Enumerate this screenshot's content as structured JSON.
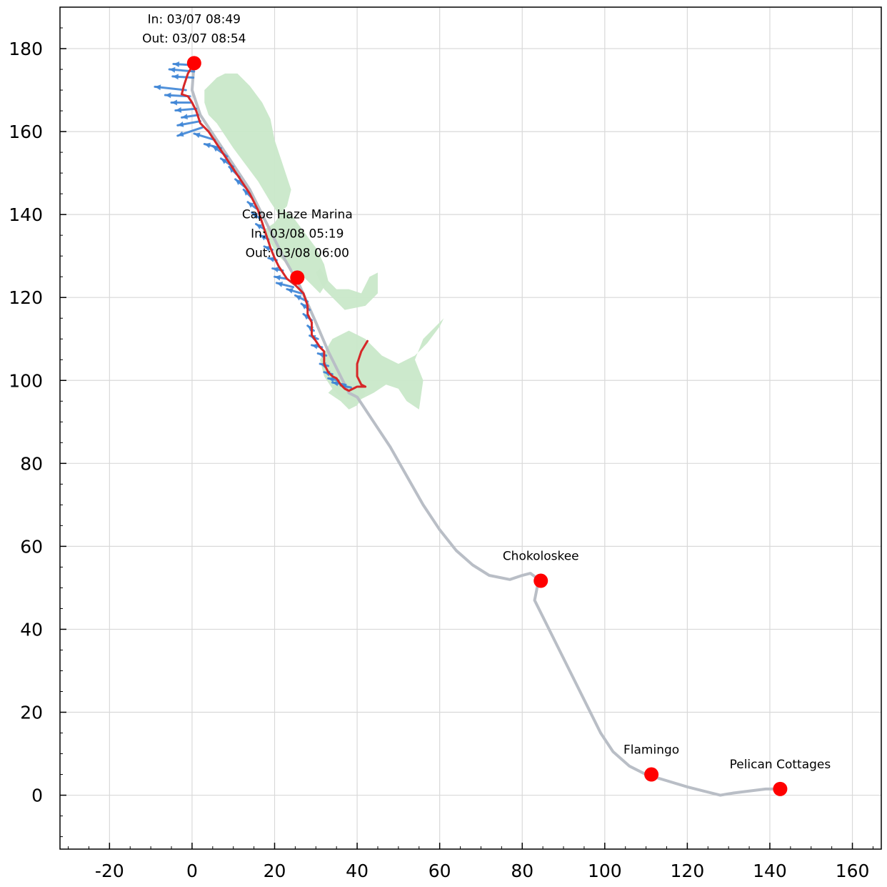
{
  "chart_data": {
    "type": "line",
    "title": "",
    "xlabel": "",
    "ylabel": "",
    "xlim": [
      -32,
      167
    ],
    "ylim": [
      -13,
      190
    ],
    "grid": true,
    "x_ticks": [
      -20,
      0,
      20,
      40,
      60,
      80,
      100,
      120,
      140,
      160
    ],
    "x_tick_labels": [
      "-20",
      "0",
      "20",
      "40",
      "60",
      "80",
      "100",
      "120",
      "140",
      "160"
    ],
    "y_ticks": [
      0,
      20,
      40,
      60,
      80,
      100,
      120,
      140,
      160,
      180
    ],
    "y_tick_labels": [
      "0",
      "20",
      "40",
      "60",
      "80",
      "100",
      "120",
      "140",
      "160",
      "180"
    ],
    "colors": {
      "planned_route": "#b9bec6",
      "actual_track": "#d62728",
      "wind_arrows": "#3f86d6",
      "stops": "#ff0000",
      "land": "#c9e8c9",
      "grid": "#d9d9d9"
    },
    "series": [
      {
        "key": "planned_route",
        "x": [
          0.5,
          0,
          2,
          6,
          10,
          14,
          18,
          22,
          26,
          30,
          33,
          36,
          38,
          40,
          44,
          48,
          52,
          56,
          60,
          64,
          68,
          72,
          77,
          80,
          82,
          84,
          83,
          85,
          88,
          92,
          96,
          99,
          102,
          106,
          110,
          115,
          120,
          124,
          128,
          131,
          135,
          139,
          142.5
        ],
        "y": [
          176.5,
          170,
          164,
          158,
          152,
          146,
          138,
          130,
          123,
          114,
          107,
          101,
          97,
          96,
          90,
          84,
          77,
          70,
          64,
          59,
          55.5,
          53,
          52,
          53,
          53.5,
          52,
          47,
          43,
          37,
          29,
          21,
          15,
          10.5,
          7,
          5,
          3.5,
          2,
          1,
          0,
          0.5,
          1,
          1.5,
          1.5
        ]
      },
      {
        "key": "actual_track",
        "x": [
          0.5,
          -1,
          -2,
          -2.5,
          -1,
          0,
          1,
          2,
          4,
          6,
          8,
          10,
          12,
          14,
          16,
          17,
          18,
          19,
          20,
          21,
          22,
          23,
          25,
          27,
          28,
          28,
          29,
          29,
          30,
          31,
          32,
          32,
          33,
          34,
          35,
          36,
          37,
          38,
          39,
          40,
          42,
          41,
          40,
          40,
          41,
          42.5
        ],
        "y": [
          176.5,
          174,
          171,
          169,
          168.5,
          167,
          165,
          162,
          160,
          157,
          154,
          151,
          148,
          145,
          141,
          138,
          135,
          132,
          129.5,
          127.5,
          126,
          124.5,
          123,
          121,
          118,
          116,
          114,
          111,
          109.5,
          108,
          107,
          104,
          102,
          101,
          100.5,
          99,
          98,
          97.5,
          98,
          98.5,
          98.5,
          99,
          101,
          104,
          107,
          109.5
        ]
      },
      {
        "key": "wind_barbs",
        "points": [
          {
            "x": 0.5,
            "y": 176.0,
            "u": -5,
            "v": 0.3
          },
          {
            "x": 0.5,
            "y": 174.5,
            "u": -6,
            "v": 0.5
          },
          {
            "x": 0.3,
            "y": 173.0,
            "u": -5,
            "v": 0.3
          },
          {
            "x": -1.5,
            "y": 170.0,
            "u": -7.5,
            "v": 0.8
          },
          {
            "x": -0.5,
            "y": 168.5,
            "u": -6,
            "v": 0.3
          },
          {
            "x": 0.0,
            "y": 167.0,
            "u": -5,
            "v": 0.0
          },
          {
            "x": 1.0,
            "y": 165.5,
            "u": -5,
            "v": -0.4
          },
          {
            "x": 1.5,
            "y": 164.0,
            "u": -4,
            "v": -0.6
          },
          {
            "x": 2.0,
            "y": 162.5,
            "u": -5.5,
            "v": -1.0
          },
          {
            "x": 2.5,
            "y": 161.0,
            "u": -6,
            "v": -2.0
          },
          {
            "x": 5.5,
            "y": 158.0,
            "u": -5,
            "v": 1.5
          },
          {
            "x": 7.0,
            "y": 156.0,
            "u": -4,
            "v": 1.0
          },
          {
            "x": 8.5,
            "y": 154.0,
            "u": -3.5,
            "v": 2.5
          },
          {
            "x": 10.0,
            "y": 151.5,
            "u": -3,
            "v": 2.0
          },
          {
            "x": 11.5,
            "y": 149.0,
            "u": -2.5,
            "v": 2.5
          },
          {
            "x": 13.0,
            "y": 146.5,
            "u": -2.5,
            "v": 2.0
          },
          {
            "x": 14.5,
            "y": 144.0,
            "u": -2,
            "v": 2.0
          },
          {
            "x": 15.5,
            "y": 141.5,
            "u": -2,
            "v": 1.5
          },
          {
            "x": 16.5,
            "y": 139.0,
            "u": -2,
            "v": 1.5
          },
          {
            "x": 17.5,
            "y": 136.5,
            "u": -2,
            "v": 1.2
          },
          {
            "x": 18.5,
            "y": 134.0,
            "u": -2,
            "v": 1.0
          },
          {
            "x": 19.5,
            "y": 131.5,
            "u": -2,
            "v": 0.8
          },
          {
            "x": 20.5,
            "y": 129.0,
            "u": -2,
            "v": 0.5
          },
          {
            "x": 22.0,
            "y": 126.5,
            "u": -2.5,
            "v": 0.5
          },
          {
            "x": 23.0,
            "y": 124.5,
            "u": -3,
            "v": 0.5
          },
          {
            "x": 24.5,
            "y": 122.5,
            "u": -4,
            "v": 1.0
          },
          {
            "x": 26.5,
            "y": 121.0,
            "u": -3.5,
            "v": 1.0
          },
          {
            "x": 28.0,
            "y": 119.0,
            "u": -3,
            "v": 1.5
          },
          {
            "x": 28.5,
            "y": 117.0,
            "u": -2,
            "v": 1.5
          },
          {
            "x": 29.0,
            "y": 114.5,
            "u": -2,
            "v": 1.5
          },
          {
            "x": 29.5,
            "y": 112.0,
            "u": -1.5,
            "v": 1.2
          },
          {
            "x": 30.5,
            "y": 110.0,
            "u": -2,
            "v": 0.8
          },
          {
            "x": 31.5,
            "y": 108.0,
            "u": -2.5,
            "v": 0.5
          },
          {
            "x": 32.5,
            "y": 106.0,
            "u": -2,
            "v": 0.5
          },
          {
            "x": 33.0,
            "y": 103.5,
            "u": -2,
            "v": 0.5
          },
          {
            "x": 34.0,
            "y": 101.5,
            "u": -2,
            "v": 0.5
          },
          {
            "x": 35.5,
            "y": 100.0,
            "u": -2.5,
            "v": 0.5
          },
          {
            "x": 37.0,
            "y": 99.0,
            "u": -3,
            "v": 0.5
          },
          {
            "x": 38.5,
            "y": 98.3,
            "u": -2.5,
            "v": 0.5
          }
        ]
      },
      {
        "key": "land",
        "polygons": [
          {
            "x": [
              6,
              8,
              11,
              14,
              17,
              19,
              20,
              22,
              24,
              23,
              21,
              19,
              16,
              13,
              10,
              8,
              6,
              4,
              3,
              3,
              5,
              6
            ],
            "y": [
              173,
              174,
              174,
              171,
              167,
              163,
              158,
              152,
              146,
              142,
              140,
              143,
              148,
              152,
              156,
              159,
              162,
              164,
              167,
              170,
              172,
              173
            ]
          },
          {
            "x": [
              17,
              20,
              22,
              24,
              27,
              30,
              32,
              33,
              31,
              29,
              27,
              25,
              23,
              21,
              19,
              17
            ],
            "y": [
              136,
              138,
              141,
              140,
              136,
              132,
              128,
              124,
              121,
              123,
              125,
              126,
              128,
              130,
              133,
              136
            ]
          },
          {
            "x": [
              30,
              32,
              34,
              37,
              42,
              45,
              45,
              43,
              41,
              38,
              35,
              33,
              31,
              30
            ],
            "y": [
              126,
              122,
              120,
              117,
              118,
              121,
              126,
              125,
              121,
              122,
              122,
              124,
              127,
              126
            ]
          },
          {
            "x": [
              31,
              34,
              38,
              42,
              46,
              50,
              54,
              57,
              60,
              61,
              59,
              56,
              54,
              56,
              55,
              52,
              50,
              47,
              44,
              40,
              36,
              34,
              32,
              31
            ],
            "y": [
              105,
              110,
              112,
              110,
              106,
              104,
              106,
              109,
              113,
              115,
              113,
              110,
              105,
              100,
              93,
              95,
              98,
              99,
              97,
              95,
              96,
              98,
              101,
              105
            ]
          },
          {
            "x": [
              33,
              36,
              38,
              40,
              42,
              41,
              38,
              35,
              33
            ],
            "y": [
              97,
              95,
              93,
              94,
              97,
              99,
              100,
              99,
              97
            ]
          }
        ]
      }
    ],
    "points": [
      {
        "name": "start",
        "x": 0.5,
        "y": 176.5,
        "labels": [
          "In: 03/07 08:49",
          "Out: 03/07 08:54"
        ]
      },
      {
        "name": "Cape Haze Marina",
        "x": 25.5,
        "y": 124.8,
        "labels": [
          "Cape Haze Marina",
          "In: 03/08 05:19",
          "Out: 03/08 06:00"
        ]
      },
      {
        "name": "Chokoloskee",
        "x": 84.5,
        "y": 51.7,
        "labels": [
          "Chokoloskee"
        ]
      },
      {
        "name": "Flamingo",
        "x": 111.3,
        "y": 5.0,
        "labels": [
          "Flamingo"
        ]
      },
      {
        "name": "Pelican Cottages",
        "x": 142.5,
        "y": 1.5,
        "labels": [
          "Pelican Cottages"
        ]
      }
    ]
  }
}
